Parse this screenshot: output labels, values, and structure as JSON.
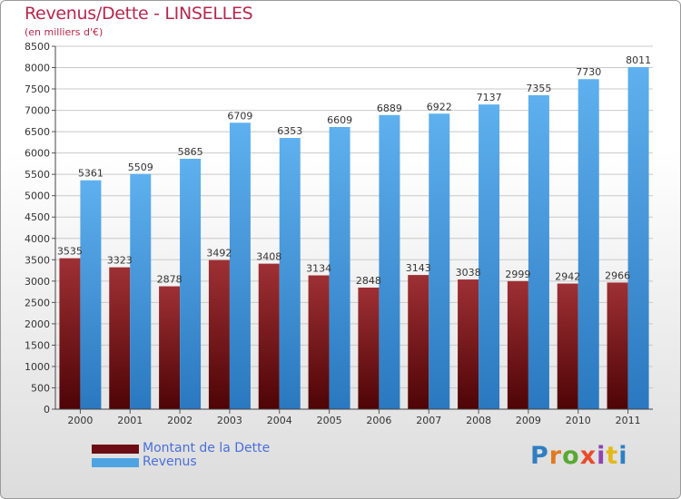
{
  "header": {
    "title": "Revenus/Dette - LINSELLES",
    "subtitle": "(en milliers d'€)"
  },
  "brand": {
    "text": "Proxiti",
    "letter_colors": [
      "#2f7fc1",
      "#e07a1f",
      "#5aa832",
      "#e84b2c",
      "#8e44ad",
      "#e5b81a",
      "#2f7fc1"
    ]
  },
  "colors": {
    "dette": "#6b0d12",
    "revenus": "#4ea3e3",
    "title": "#b5274d",
    "legend_text": "#4a6fd8"
  },
  "chart_data": {
    "type": "bar",
    "title": "Revenus/Dette - LINSELLES",
    "ylabel": "(en milliers d'€)",
    "ylim": [
      0,
      8500
    ],
    "yticks": [
      0,
      500,
      1000,
      1500,
      2000,
      2500,
      3000,
      3500,
      4000,
      4500,
      5000,
      5500,
      6000,
      6500,
      7000,
      7500,
      8000,
      8500
    ],
    "grid": true,
    "legend_position": "bottom-left",
    "categories": [
      "2000",
      "2001",
      "2002",
      "2003",
      "2004",
      "2005",
      "2006",
      "2007",
      "2008",
      "2009",
      "2010",
      "2011"
    ],
    "series": [
      {
        "name": "Montant de la Dette",
        "color": "#6b0d12",
        "values": [
          3535,
          3323,
          2878,
          3492,
          3408,
          3134,
          2848,
          3143,
          3038,
          2999,
          2942,
          2966
        ]
      },
      {
        "name": "Revenus",
        "color": "#4ea3e3",
        "values": [
          5361,
          5509,
          5865,
          6709,
          6353,
          6609,
          6889,
          6922,
          7137,
          7355,
          7730,
          8011
        ]
      }
    ]
  }
}
